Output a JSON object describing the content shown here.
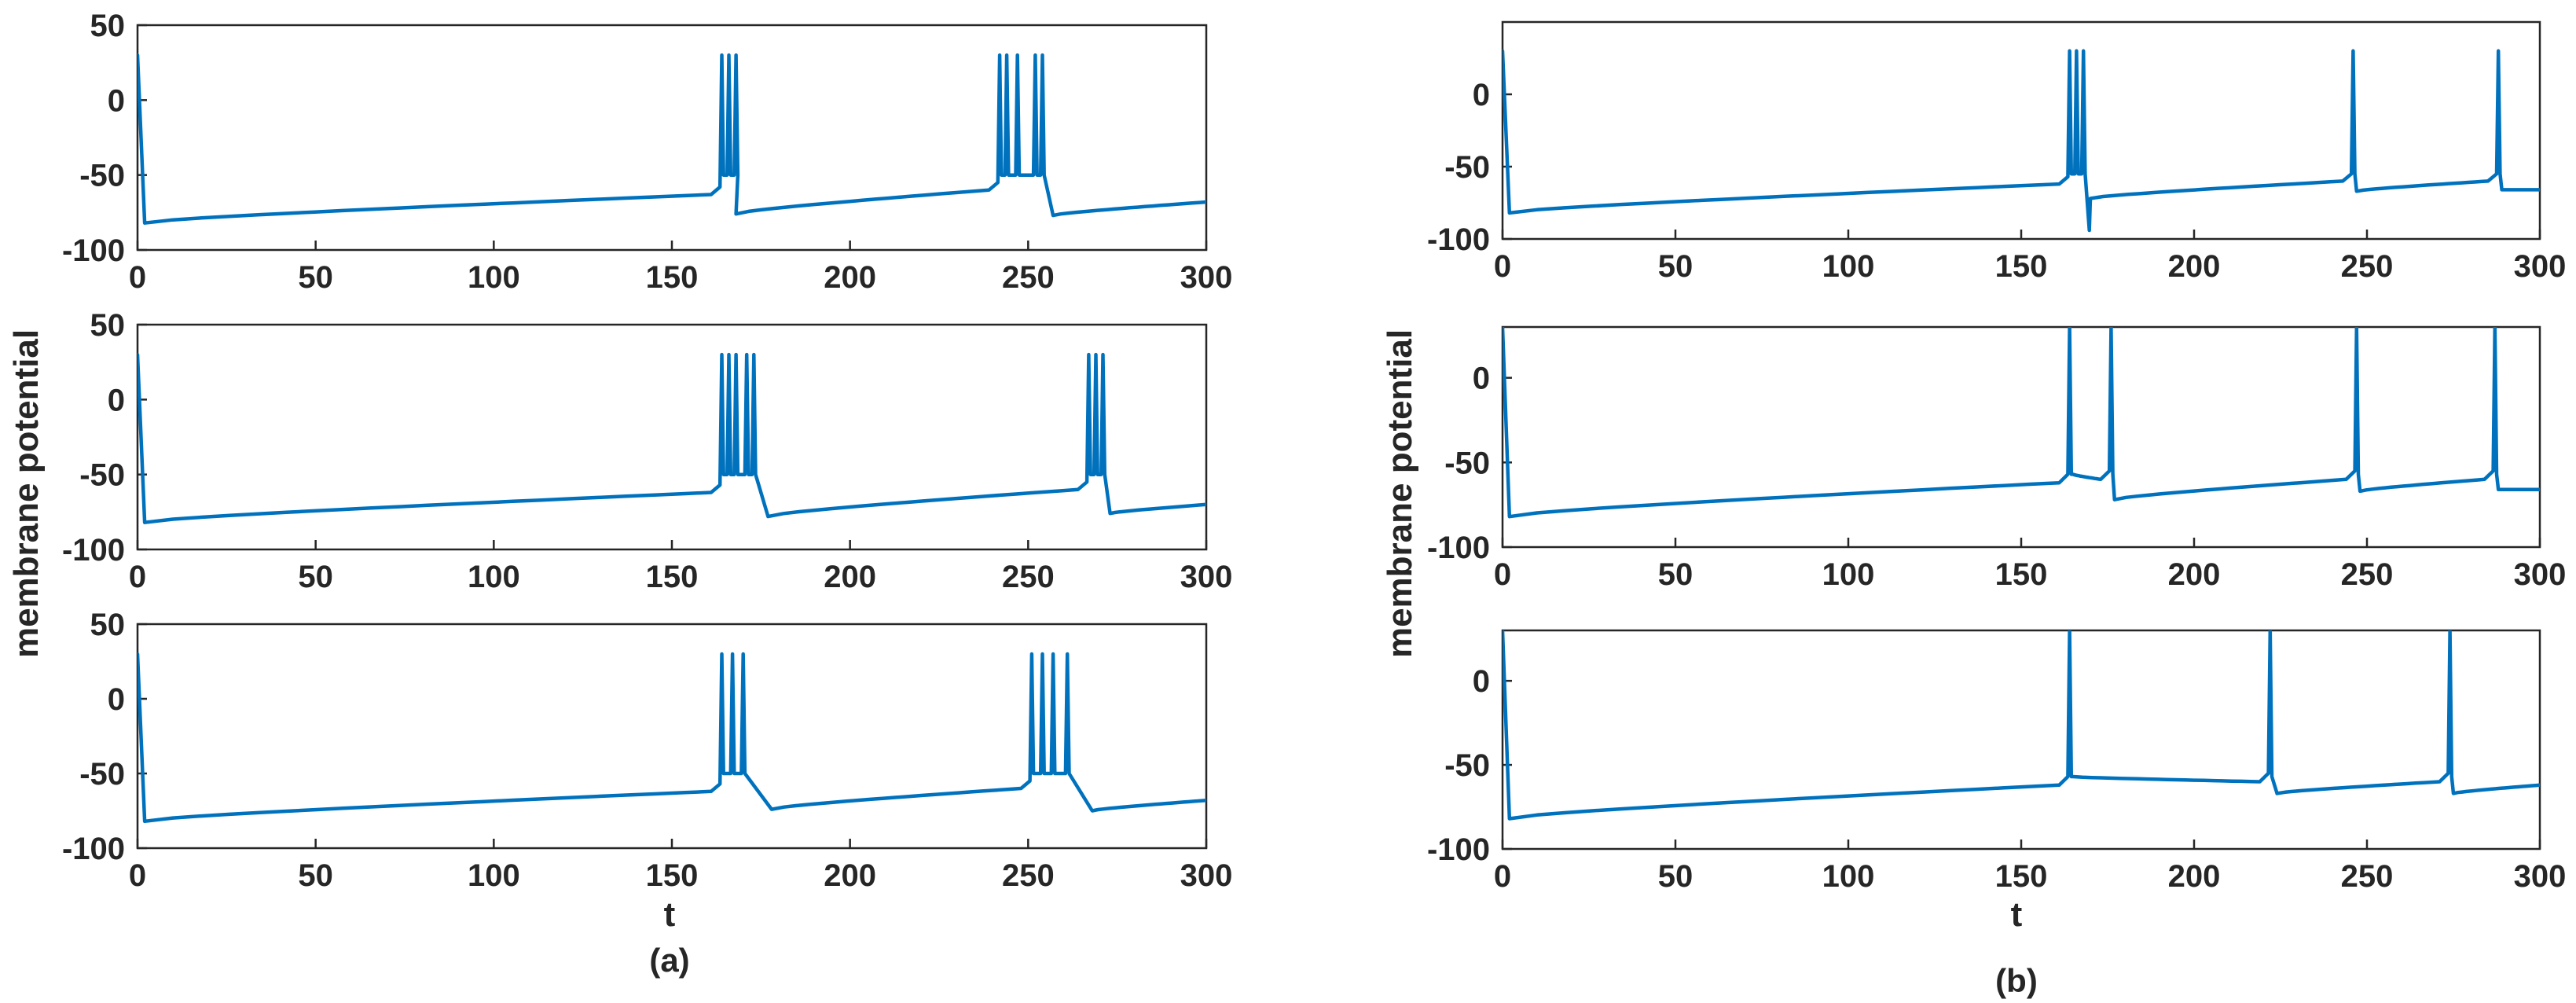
{
  "colors": {
    "trace": "#0072BD",
    "axes": "#262626"
  },
  "figure": {
    "ylabel": "membrane potential",
    "xlabel": "t",
    "panel_labels": [
      "(a)",
      "(b)"
    ]
  },
  "chart_data": [
    {
      "type": "line",
      "panel": "(a)",
      "row": 1,
      "xlim": [
        0,
        300
      ],
      "ylim": [
        -100,
        50
      ],
      "xticks": [
        0,
        50,
        100,
        150,
        200,
        250,
        300
      ],
      "yticks": [
        -100,
        -50,
        0,
        50
      ],
      "series": [
        {
          "name": "membrane potential",
          "baseline_from": [
            2,
            -82
          ],
          "baseline_to": [
            160,
            -63
          ],
          "bursts": [
            {
              "spikes": [
                164,
                166,
                168
              ],
              "end": 168,
              "reset": -76
            },
            {
              "spikes": [
                242,
                244,
                247,
                252,
                254
              ],
              "end": 257,
              "reset": -77
            }
          ],
          "end": [
            300,
            -68
          ],
          "peak": 30,
          "burst_floor": -50
        }
      ]
    },
    {
      "type": "line",
      "panel": "(a)",
      "row": 2,
      "xlim": [
        0,
        300
      ],
      "ylim": [
        -100,
        50
      ],
      "xticks": [
        0,
        50,
        100,
        150,
        200,
        250,
        300
      ],
      "yticks": [
        -100,
        -50,
        0,
        50
      ],
      "series": [
        {
          "name": "membrane potential",
          "baseline_from": [
            2,
            -82
          ],
          "baseline_to": [
            160,
            -62
          ],
          "bursts": [
            {
              "spikes": [
                164,
                166,
                168,
                171,
                173
              ],
              "end": 177,
              "reset": -78
            },
            {
              "spikes": [
                267,
                269,
                271
              ],
              "end": 273,
              "reset": -76
            }
          ],
          "end": [
            300,
            -70
          ],
          "peak": 30,
          "burst_floor": -50
        }
      ]
    },
    {
      "type": "line",
      "panel": "(a)",
      "row": 3,
      "xlim": [
        0,
        300
      ],
      "ylim": [
        -100,
        50
      ],
      "xticks": [
        0,
        50,
        100,
        150,
        200,
        250,
        300
      ],
      "yticks": [
        -100,
        -50,
        0,
        50
      ],
      "series": [
        {
          "name": "membrane potential",
          "baseline_from": [
            2,
            -82
          ],
          "baseline_to": [
            160,
            -62
          ],
          "bursts": [
            {
              "spikes": [
                164,
                167,
                170
              ],
              "end": 178,
              "reset": -74
            },
            {
              "spikes": [
                251,
                254,
                257,
                261
              ],
              "end": 268,
              "reset": -75
            }
          ],
          "end": [
            300,
            -68
          ],
          "peak": 30,
          "burst_floor": -50
        }
      ]
    },
    {
      "type": "line",
      "panel": "(b)",
      "row": 1,
      "xlim": [
        0,
        300
      ],
      "ylim": [
        -100,
        50
      ],
      "xticks": [
        0,
        50,
        100,
        150,
        200,
        250,
        300
      ],
      "yticks": [
        -100,
        -50,
        0
      ],
      "series": [
        {
          "name": "membrane potential",
          "baseline_from": [
            2,
            -82
          ],
          "baseline_to": [
            160,
            -62
          ],
          "bursts": [
            {
              "spikes": [
                164,
                166,
                168
              ],
              "end": 170,
              "reset": -72,
              "undershoot": -94
            },
            {
              "spikes": [
                246
              ],
              "end": 247,
              "reset": -67
            },
            {
              "spikes": [
                288
              ],
              "end": 289,
              "reset": -66
            }
          ],
          "end": [
            300,
            -66
          ],
          "peak": 30,
          "burst_floor": -55
        }
      ]
    },
    {
      "type": "line",
      "panel": "(b)",
      "row": 2,
      "xlim": [
        0,
        300
      ],
      "ylim": [
        -100,
        30
      ],
      "xticks": [
        0,
        50,
        100,
        150,
        200,
        250,
        300
      ],
      "yticks": [
        -100,
        -50,
        0
      ],
      "series": [
        {
          "name": "membrane potential",
          "baseline_from": [
            2,
            -82
          ],
          "baseline_to": [
            160,
            -62
          ],
          "bursts": [
            {
              "spikes": [
                164
              ],
              "end": 165,
              "reset": -57
            },
            {
              "spikes": [
                176
              ],
              "end": 177,
              "reset": -72
            },
            {
              "spikes": [
                247
              ],
              "end": 248,
              "reset": -67
            },
            {
              "spikes": [
                287
              ],
              "end": 288,
              "reset": -66
            }
          ],
          "end": [
            300,
            -66
          ],
          "peak": 30,
          "burst_floor": -57
        }
      ]
    },
    {
      "type": "line",
      "panel": "(b)",
      "row": 3,
      "xlim": [
        0,
        300
      ],
      "ylim": [
        -100,
        30
      ],
      "xticks": [
        0,
        50,
        100,
        150,
        200,
        250,
        300
      ],
      "yticks": [
        -100,
        -50,
        0
      ],
      "series": [
        {
          "name": "membrane potential",
          "baseline_from": [
            2,
            -82
          ],
          "baseline_to": [
            160,
            -62
          ],
          "bursts": [
            {
              "spikes": [
                164
              ],
              "end": 165,
              "reset": -57
            },
            {
              "spikes": [
                222
              ],
              "end": 224,
              "reset": -67
            },
            {
              "spikes": [
                274
              ],
              "end": 275,
              "reset": -67
            }
          ],
          "end": [
            300,
            -62
          ],
          "peak": 30,
          "burst_floor": -57
        }
      ]
    }
  ]
}
